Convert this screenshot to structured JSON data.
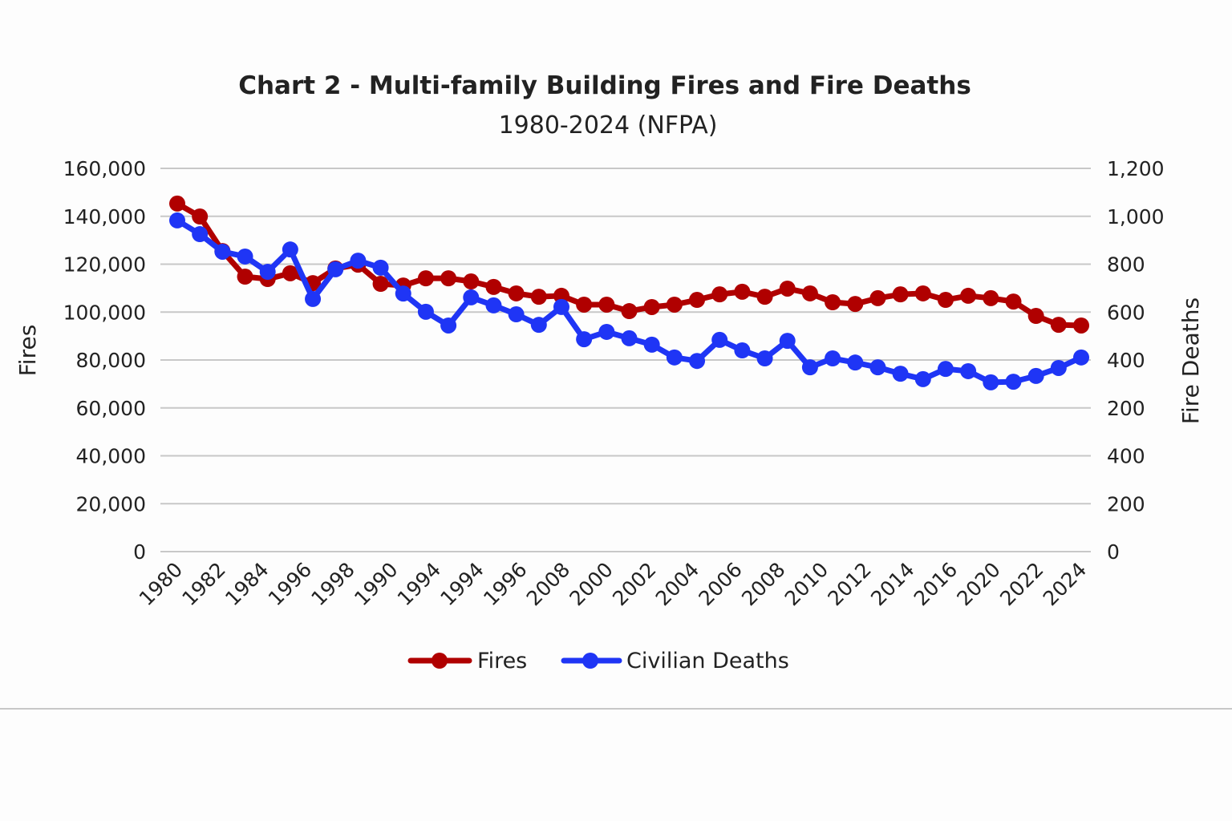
{
  "chart_data": {
    "type": "line",
    "title": "Chart 2 - Multi-family Building Fires and Fire Deaths",
    "subtitle": "1980-2024 (NFPA)",
    "xlabel": "",
    "ylabel": "Fires",
    "y2label": "Fire Deaths",
    "ylim": [
      0,
      160000
    ],
    "y2lim": [
      0,
      1200
    ],
    "grid": true,
    "legend_position": "bottom-center",
    "y_ticks": [
      "0",
      "20,000",
      "40,000",
      "60,000",
      "80,000",
      "100,000",
      "120,000",
      "140,000",
      "160,000"
    ],
    "y2_ticks": [
      "0",
      "200",
      "400",
      "200",
      "400",
      "600",
      "800",
      "1,000",
      "1,200"
    ],
    "x_tick_labels": [
      "1980",
      "1982",
      "1984",
      "1996",
      "1998",
      "1990",
      "1994",
      "1994",
      "1996",
      "2008",
      "2000",
      "2002",
      "2004",
      "2006",
      "2008",
      "2010",
      "2012",
      "2014",
      "2016",
      "2020",
      "2022",
      "2024"
    ],
    "point_count": 41,
    "series": [
      {
        "name": "Fires",
        "axis": "left",
        "color": "#b00000",
        "values": [
          145300,
          139900,
          125500,
          114800,
          113800,
          116200,
          112100,
          118200,
          119800,
          111800,
          111100,
          114100,
          114100,
          112800,
          110500,
          107800,
          106400,
          106800,
          103100,
          103100,
          100400,
          102100,
          103100,
          105100,
          107400,
          108500,
          106400,
          109800,
          107800,
          104100,
          103400,
          105800,
          107400,
          107800,
          105100,
          106800,
          105800,
          104400,
          98400,
          94700,
          94400
        ]
      },
      {
        "name": "Civilian Deaths",
        "axis": "right",
        "color": "#1f35f5",
        "values": [
          1037,
          994,
          939,
          924,
          876,
          946,
          791,
          884,
          911,
          889,
          808,
          751,
          708,
          796,
          771,
          743,
          710,
          766,
          665,
          688,
          668,
          648,
          608,
          597,
          663,
          630,
          605,
          660,
          577,
          605,
          592,
          577,
          557,
          540,
          572,
          565,
          530,
          532,
          550,
          575,
          608
        ]
      }
    ]
  }
}
